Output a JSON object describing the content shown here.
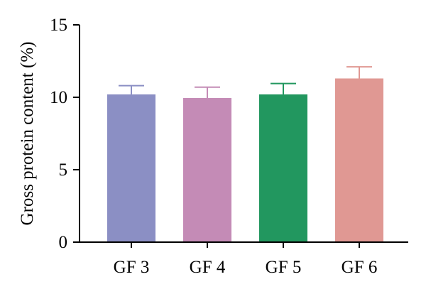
{
  "chart_data": {
    "type": "bar",
    "categories": [
      "GF 3",
      "GF 4",
      "GF 5",
      "GF 6"
    ],
    "values": [
      10.2,
      9.95,
      10.2,
      11.3
    ],
    "errors": [
      0.6,
      0.75,
      0.75,
      0.8
    ],
    "colors": [
      "#8b8fc4",
      "#c48bb6",
      "#22975f",
      "#e09893"
    ],
    "ylabel": "Gross protein content (%)",
    "xlabel": "",
    "ylim": [
      0,
      15
    ],
    "yticks": [
      0,
      5,
      10,
      15
    ],
    "grid": false,
    "legend": "none"
  }
}
